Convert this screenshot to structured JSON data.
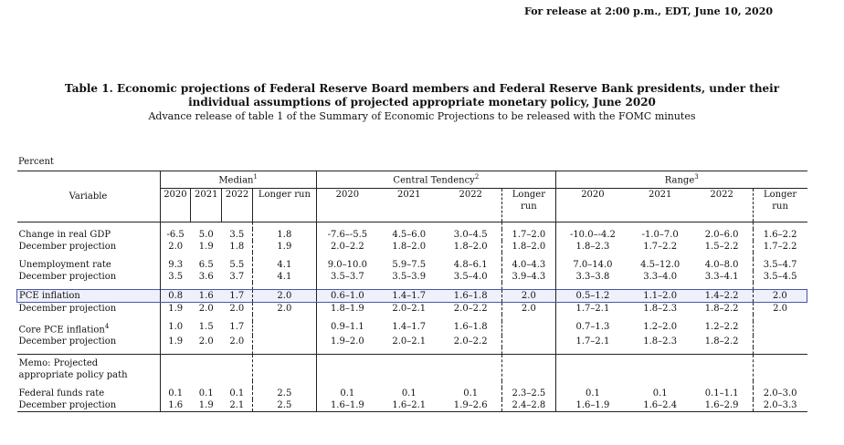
{
  "release_note": "For release at 2:00 p.m., EDT, June 10, 2020",
  "title_line1": "Table 1. Economic projections of Federal Reserve Board members and Federal Reserve Bank presidents, under their",
  "title_line2": "individual assumptions of projected appropriate monetary policy, June 2020",
  "subtitle": "Advance release of table 1 of the Summary of Economic Projections to be released with the FOMC minutes",
  "percent_label": "Percent",
  "header": {
    "variable": "Variable",
    "median": "Median",
    "median_note": "1",
    "central": "Central Tendency",
    "central_note": "2",
    "range": "Range",
    "range_note": "3",
    "years": [
      "2020",
      "2021",
      "2022",
      "Longer run"
    ]
  },
  "rows": {
    "gdp": {
      "label": "Change in real GDP",
      "values": [
        "-6.5",
        "5.0",
        "3.5",
        "1.8",
        "-7.6–-5.5",
        "4.5–6.0",
        "3.0–4.5",
        "1.7–2.0",
        "-10.0–-4.2",
        "-1.0–7.0",
        "2.0–6.0",
        "1.6–2.2"
      ]
    },
    "gdp_dec": {
      "label": "December projection",
      "values": [
        "2.0",
        "1.9",
        "1.8",
        "1.9",
        "2.0–2.2",
        "1.8–2.0",
        "1.8–2.0",
        "1.8–2.0",
        "1.8–2.3",
        "1.7–2.2",
        "1.5–2.2",
        "1.7–2.2"
      ]
    },
    "unemp": {
      "label": "Unemployment rate",
      "values": [
        "9.3",
        "6.5",
        "5.5",
        "4.1",
        "9.0–10.0",
        "5.9–7.5",
        "4.8–6.1",
        "4.0–4.3",
        "7.0–14.0",
        "4.5–12.0",
        "4.0–8.0",
        "3.5–4.7"
      ]
    },
    "unemp_dec": {
      "label": "December projection",
      "values": [
        "3.5",
        "3.6",
        "3.7",
        "4.1",
        "3.5–3.7",
        "3.5–3.9",
        "3.5–4.0",
        "3.9–4.3",
        "3.3–3.8",
        "3.3–4.0",
        "3.3–4.1",
        "3.5–4.5"
      ]
    },
    "pce": {
      "label": "PCE inflation",
      "values": [
        "0.8",
        "1.6",
        "1.7",
        "2.0",
        "0.6–1.0",
        "1.4–1.7",
        "1.6–1.8",
        "2.0",
        "0.5–1.2",
        "1.1–2.0",
        "1.4–2.2",
        "2.0"
      ]
    },
    "pce_dec": {
      "label": "December projection",
      "values": [
        "1.9",
        "2.0",
        "2.0",
        "2.0",
        "1.8–1.9",
        "2.0–2.1",
        "2.0–2.2",
        "2.0",
        "1.7–2.1",
        "1.8–2.3",
        "1.8–2.2",
        "2.0"
      ]
    },
    "core": {
      "label": "Core PCE inflation",
      "note": "4",
      "values": [
        "1.0",
        "1.5",
        "1.7",
        "",
        "0.9–1.1",
        "1.4–1.7",
        "1.6–1.8",
        "",
        "0.7–1.3",
        "1.2–2.0",
        "1.2–2.2",
        ""
      ]
    },
    "core_dec": {
      "label": "December projection",
      "values": [
        "1.9",
        "2.0",
        "2.0",
        "",
        "1.9–2.0",
        "2.0–2.1",
        "2.0–2.2",
        "",
        "1.7–2.1",
        "1.8–2.3",
        "1.8–2.2",
        ""
      ]
    },
    "memo": {
      "label_line1": "Memo: Projected",
      "label_line2": "appropriate policy path"
    },
    "ffr": {
      "label": "Federal funds rate",
      "values": [
        "0.1",
        "0.1",
        "0.1",
        "2.5",
        "0.1",
        "0.1",
        "0.1",
        "2.3–2.5",
        "0.1",
        "0.1",
        "0.1–1.1",
        "2.0–3.0"
      ]
    },
    "ffr_dec": {
      "label": "December projection",
      "values": [
        "1.6",
        "1.9",
        "2.1",
        "2.5",
        "1.6–1.9",
        "1.6–2.1",
        "1.9–2.6",
        "2.4–2.8",
        "1.6–1.9",
        "1.6–2.4",
        "1.6–2.9",
        "2.0–3.3"
      ]
    }
  },
  "colors": {
    "highlight_border": "#4a55a8",
    "highlight_fill": "#eef0fb"
  }
}
